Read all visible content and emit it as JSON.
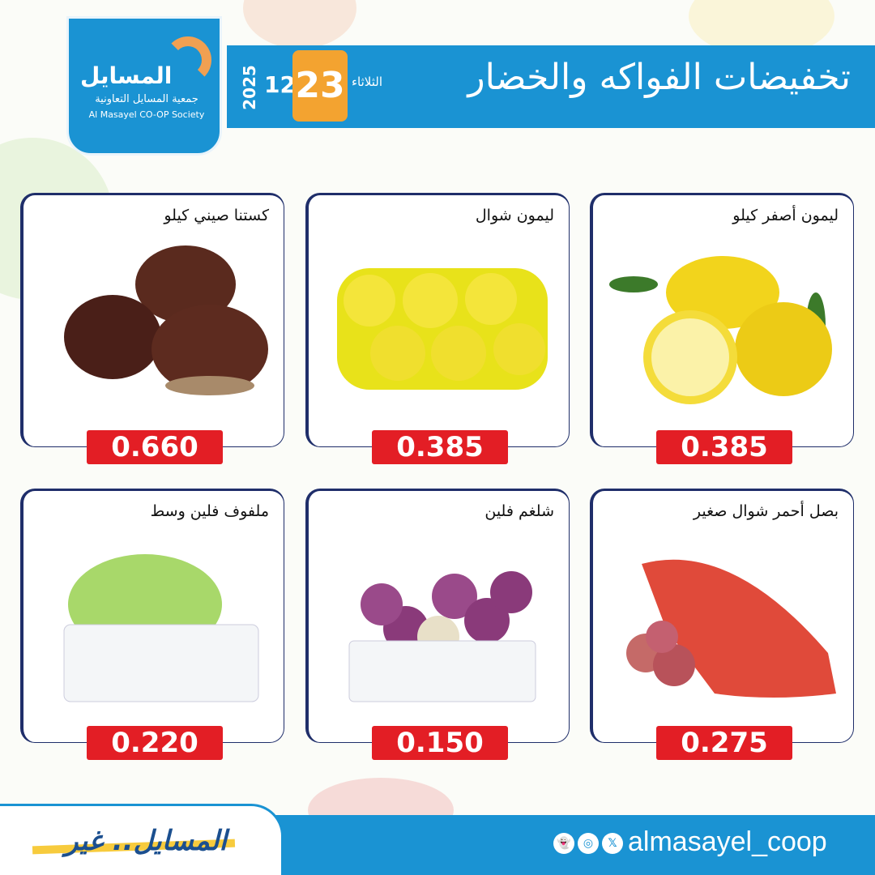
{
  "logo": {
    "name_ar": "المسايل",
    "subtitle_ar": "جمعية المسايل التعاونية",
    "name_en": "Al Masayel CO-OP Society"
  },
  "header": {
    "title": "تخفيضات الفواكه والخضار",
    "weekday": "الثلاثاء",
    "day": "23",
    "month": "12",
    "year": "2025"
  },
  "products": [
    {
      "name": "ليمون أصفر كيلو",
      "price": "0.385",
      "image": "lemons"
    },
    {
      "name": "ليمون شوال",
      "price": "0.385",
      "image": "lemon-net-bag"
    },
    {
      "name": "كستنا صيني كيلو",
      "price": "0.660",
      "image": "chestnuts"
    },
    {
      "name": "بصل أحمر شوال صغير",
      "price": "0.275",
      "image": "red-onion-sack"
    },
    {
      "name": "شلغم فلين",
      "price": "0.150",
      "image": "turnips-box"
    },
    {
      "name": "ملفوف فلين وسط",
      "price": "0.220",
      "image": "cabbage-box"
    }
  ],
  "footer": {
    "slogan": "المسايل.. غير",
    "handle": "almasayel_coop",
    "social_icons": [
      "snapchat-icon",
      "instagram-icon",
      "x-icon"
    ]
  },
  "colors": {
    "brand_blue": "#1a93d3",
    "accent_orange": "#f3a330",
    "price_red": "#e31e25",
    "card_border": "#1f2e6a"
  }
}
